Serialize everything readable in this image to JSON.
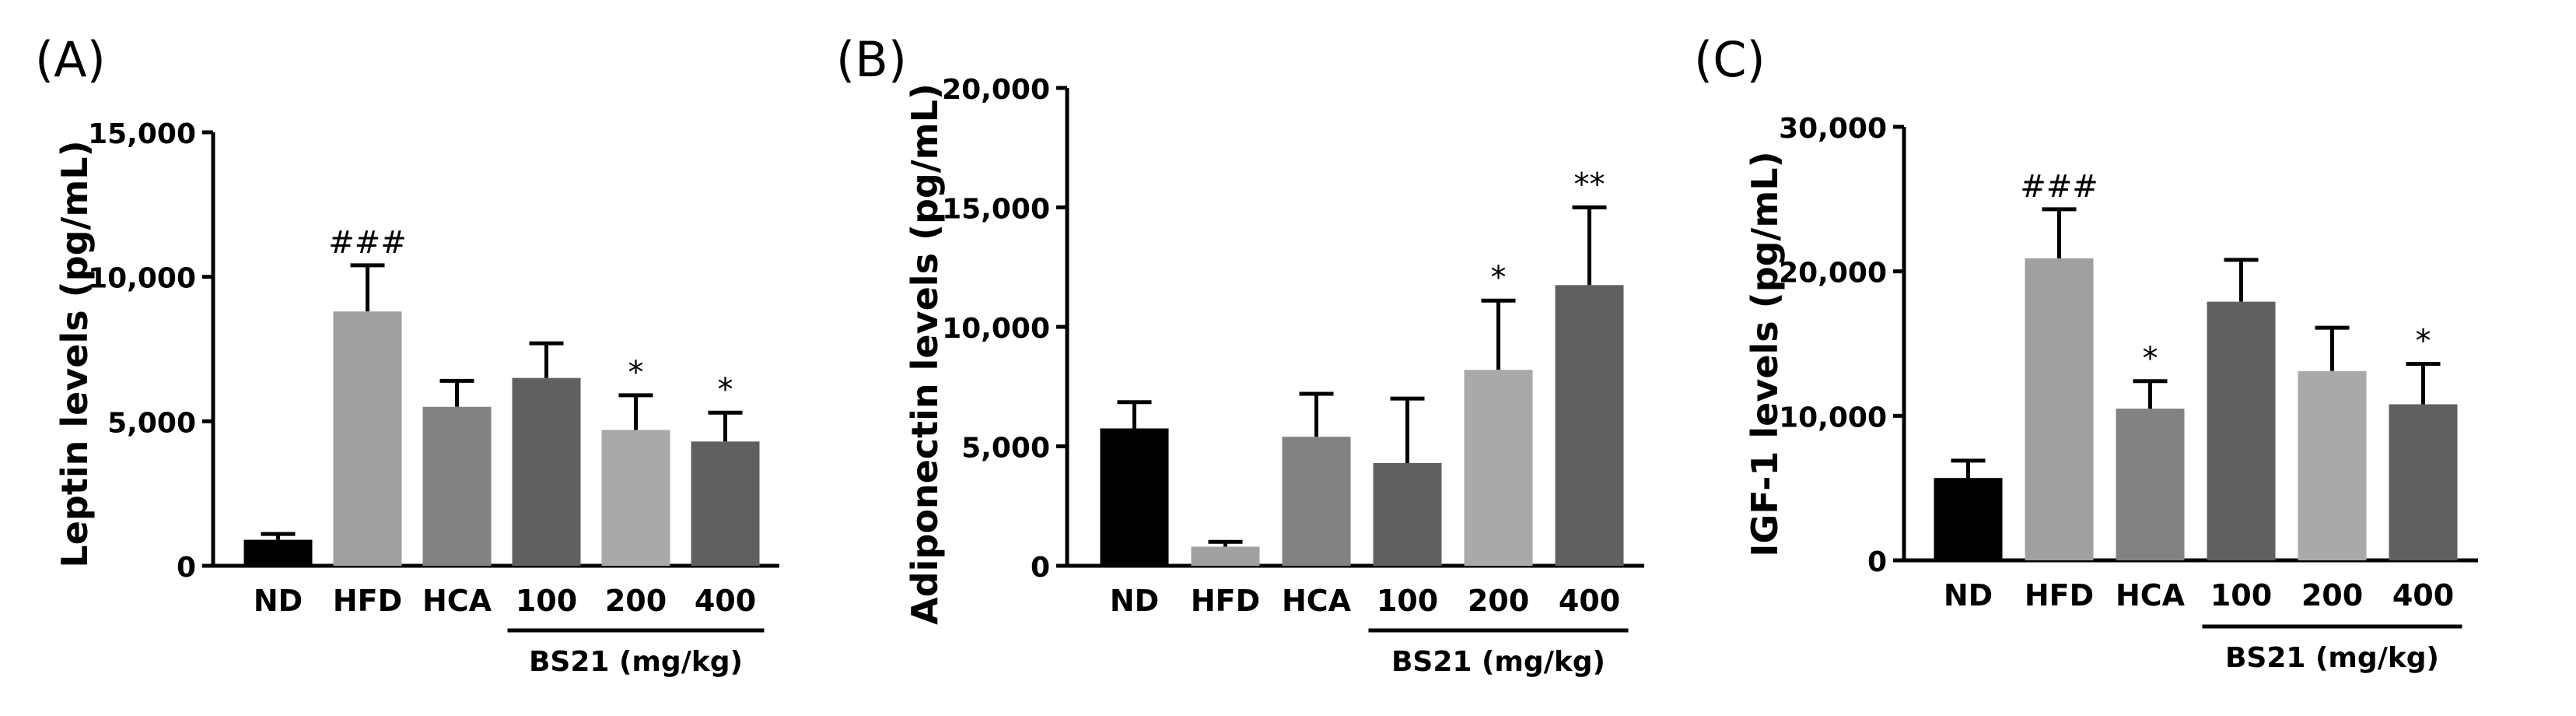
{
  "chart_data": [
    {
      "panel": "(A)",
      "type": "bar",
      "ylabel": "Leptin levels (pg/mL)",
      "ylim": [
        0,
        15000
      ],
      "yticks": [
        0,
        5000,
        10000,
        15000
      ],
      "ytick_labels": [
        "0",
        "5,000",
        "10,000",
        "15,000"
      ],
      "categories": [
        "ND",
        "HFD",
        "HCA",
        "100",
        "200",
        "400"
      ],
      "values": [
        900,
        8800,
        5500,
        6500,
        4700,
        4300
      ],
      "errors": [
        200,
        1600,
        900,
        1200,
        1200,
        1000
      ],
      "annotations": [
        "",
        "###",
        "",
        "",
        "*",
        "*"
      ],
      "colors": [
        "#000000",
        "#a0a0a3",
        "#828282",
        "#606060",
        "#a9a9ab",
        "#606060"
      ],
      "group_label": "BS21 (mg/kg)"
    },
    {
      "panel": "(B)",
      "type": "bar",
      "ylabel": "Adiponectin levels (pg/mL)",
      "ylim": [
        0,
        20000
      ],
      "yticks": [
        0,
        5000,
        10000,
        15000,
        20000
      ],
      "ytick_labels": [
        "0",
        "5,000",
        "10,000",
        "15,000",
        "20,000"
      ],
      "categories": [
        "ND",
        "HFD",
        "HCA",
        "100",
        "200",
        "400"
      ],
      "values": [
        5750,
        800,
        5400,
        4300,
        8200,
        11750
      ],
      "errors": [
        1100,
        200,
        1800,
        2700,
        2900,
        3250
      ],
      "annotations": [
        "",
        "",
        "",
        "",
        "*",
        "**"
      ],
      "colors": [
        "#000000",
        "#a0a0a3",
        "#828282",
        "#606060",
        "#a9a9ab",
        "#606060"
      ],
      "group_label": "BS21 (mg/kg)"
    },
    {
      "panel": "(C)",
      "type": "bar",
      "ylabel": "IGF-1 levels (pg/mL)",
      "ylim": [
        0,
        30000
      ],
      "yticks": [
        0,
        10000,
        20000,
        30000
      ],
      "ytick_labels": [
        "0",
        "10,000",
        "20,000",
        "30,000"
      ],
      "categories": [
        "ND",
        "HFD",
        "HCA",
        "100",
        "200",
        "400"
      ],
      "values": [
        5700,
        20900,
        10500,
        17900,
        13100,
        10800
      ],
      "errors": [
        1200,
        3400,
        1900,
        2900,
        3000,
        2800
      ],
      "annotations": [
        "",
        "###",
        "*",
        "",
        "",
        "*"
      ],
      "colors": [
        "#000000",
        "#a0a0a3",
        "#828282",
        "#606060",
        "#a9a9ab",
        "#606060"
      ],
      "group_label": "BS21 (mg/kg)"
    }
  ]
}
